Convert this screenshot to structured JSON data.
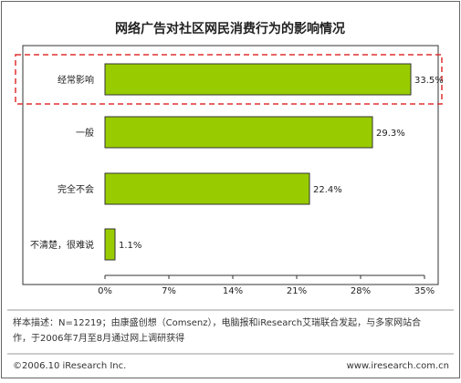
{
  "chart_data": {
    "type": "bar",
    "orientation": "horizontal",
    "title": "网络广告对社区网民消费行为的影响情况",
    "categories": [
      "经常影响",
      "一般",
      "完全不会",
      "不清楚，很难说"
    ],
    "values": [
      33.5,
      29.3,
      22.4,
      1.1
    ],
    "value_labels": [
      "33.5%",
      "29.3%",
      "22.4%",
      "1.1%"
    ],
    "xlim": [
      0,
      35
    ],
    "xticks": [
      0,
      7,
      14,
      21,
      28,
      35
    ],
    "xtick_labels": [
      "0%",
      "7%",
      "14%",
      "21%",
      "28%",
      "35%"
    ],
    "grid": false,
    "highlighted_category": "经常影响"
  },
  "footnote": {
    "line1": "样本描述：N=12219；由康盛创想（Comsenz），电脑报和iResearch艾瑞联合发起，与多家网站合",
    "line2": "作，于2006年7月至8月通过网上调研获得"
  },
  "footer": {
    "copyright": "©2006.10 iResearch Inc.",
    "url": "www.iresearch.com.cn"
  },
  "colors": {
    "bar_fill": "#99cc00",
    "bar_stroke": "#333333",
    "highlight_box": "#e03030",
    "border": "#666666"
  }
}
